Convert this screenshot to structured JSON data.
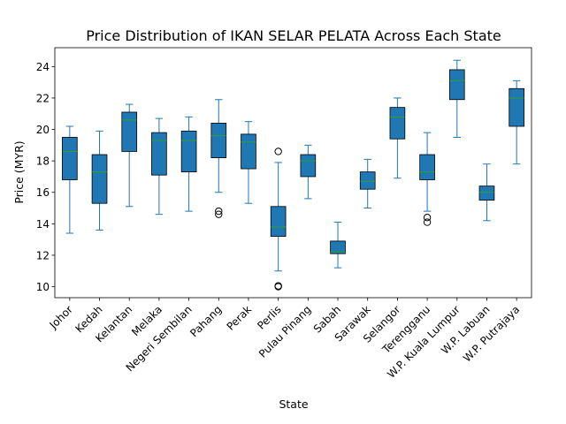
{
  "chart_data": {
    "type": "boxplot",
    "title": "Price Distribution of IKAN SELAR PELATA Across Each State",
    "xlabel": "State",
    "ylabel": "Price (MYR)",
    "ylim": [
      9.3,
      25.2
    ],
    "yticks": [
      10,
      12,
      14,
      16,
      18,
      20,
      22,
      24
    ],
    "grid": false,
    "colors": {
      "box": "#1f77b4",
      "median": "#2ca02c",
      "whisker": "#1f77b4",
      "outlier": "#000000"
    },
    "categories": [
      "Johor",
      "Kedah",
      "Kelantan",
      "Melaka",
      "Negeri Sembilan",
      "Pahang",
      "Perak",
      "Perlis",
      "Pulau Pinang",
      "Sabah",
      "Sarawak",
      "Selangor",
      "Terengganu",
      "W.P. Kuala Lumpur",
      "W.P. Labuan",
      "W.P. Putrajaya"
    ],
    "boxes": [
      {
        "whislo": 13.4,
        "q1": 16.8,
        "med": 18.6,
        "q3": 19.5,
        "whishi": 20.2,
        "fliers": []
      },
      {
        "whislo": 13.6,
        "q1": 15.3,
        "med": 17.3,
        "q3": 18.4,
        "whishi": 19.9,
        "fliers": []
      },
      {
        "whislo": 15.1,
        "q1": 18.6,
        "med": 20.6,
        "q3": 21.1,
        "whishi": 21.6,
        "fliers": []
      },
      {
        "whislo": 14.6,
        "q1": 17.1,
        "med": 19.3,
        "q3": 19.8,
        "whishi": 20.7,
        "fliers": []
      },
      {
        "whislo": 14.8,
        "q1": 17.3,
        "med": 19.3,
        "q3": 19.9,
        "whishi": 20.8,
        "fliers": []
      },
      {
        "whislo": 16.0,
        "q1": 18.2,
        "med": 19.6,
        "q3": 20.4,
        "whishi": 21.9,
        "fliers": [
          14.6,
          14.8
        ]
      },
      {
        "whislo": 15.3,
        "q1": 17.5,
        "med": 19.2,
        "q3": 19.7,
        "whishi": 20.5,
        "fliers": []
      },
      {
        "whislo": 11.0,
        "q1": 13.2,
        "med": 13.8,
        "q3": 15.1,
        "whishi": 17.9,
        "fliers": [
          18.6,
          10.0,
          10.05
        ]
      },
      {
        "whislo": 15.6,
        "q1": 17.0,
        "med": 18.0,
        "q3": 18.4,
        "whishi": 19.0,
        "fliers": []
      },
      {
        "whislo": 11.2,
        "q1": 12.1,
        "med": 12.2,
        "q3": 12.9,
        "whishi": 14.1,
        "fliers": []
      },
      {
        "whislo": 15.0,
        "q1": 16.2,
        "med": 16.7,
        "q3": 17.3,
        "whishi": 18.1,
        "fliers": []
      },
      {
        "whislo": 16.9,
        "q1": 19.4,
        "med": 20.8,
        "q3": 21.4,
        "whishi": 22.0,
        "fliers": []
      },
      {
        "whislo": 14.8,
        "q1": 16.8,
        "med": 17.3,
        "q3": 18.4,
        "whishi": 19.8,
        "fliers": [
          14.1,
          14.4
        ]
      },
      {
        "whislo": 19.5,
        "q1": 21.9,
        "med": 23.1,
        "q3": 23.8,
        "whishi": 24.4,
        "fliers": []
      },
      {
        "whislo": 14.2,
        "q1": 15.5,
        "med": 16.0,
        "q3": 16.4,
        "whishi": 17.8,
        "fliers": []
      },
      {
        "whislo": 17.8,
        "q1": 20.2,
        "med": 22.0,
        "q3": 22.6,
        "whishi": 23.1,
        "fliers": []
      }
    ]
  }
}
